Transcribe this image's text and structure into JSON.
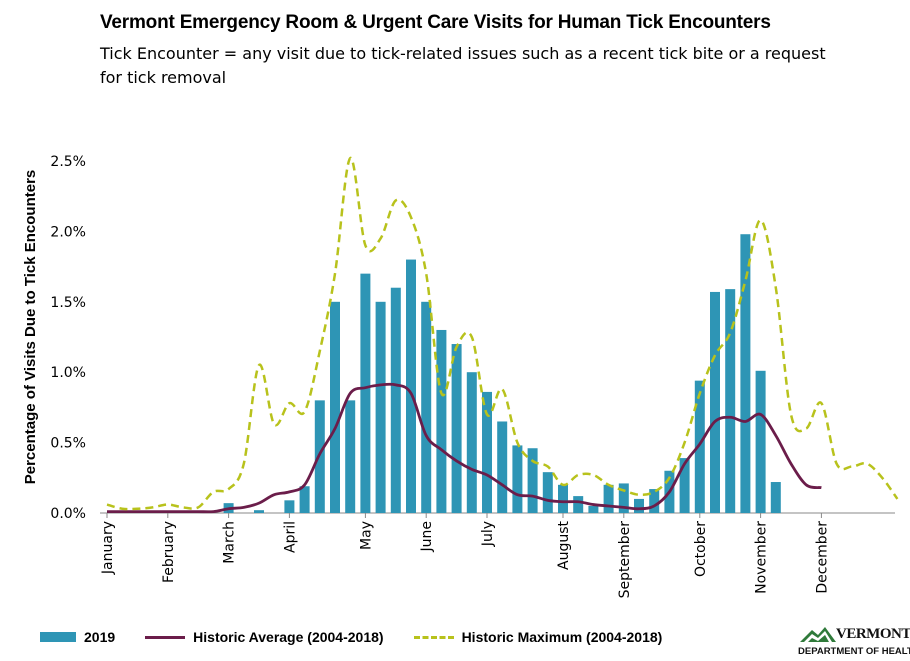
{
  "header": {
    "title": "Vermont Emergency Room & Urgent Care Visits for Human Tick Encounters",
    "subtitle": "Tick Encounter = any visit due to tick-related issues such as a recent tick bite or a request for tick removal"
  },
  "logo": {
    "name": "VERMONT",
    "dept": "DEPARTMENT OF HEALTH"
  },
  "colors": {
    "bar": "#2e95b5",
    "average": "#6b1d4a",
    "maximum": "#b8c21c"
  },
  "chart_data": {
    "type": "bar",
    "title": "Vermont Emergency Room & Urgent Care Visits for Human Tick Encounters",
    "ylabel": "Percentage of Visits Due to Tick Encounters",
    "xlabel": "",
    "ylim": [
      0,
      2.5
    ],
    "yticks": [
      "0.0%",
      "0.5%",
      "1.0%",
      "1.5%",
      "2.0%",
      "2.5%"
    ],
    "xlim": [
      1,
      53
    ],
    "months": [
      {
        "label": "January",
        "week": 1
      },
      {
        "label": "February",
        "week": 5
      },
      {
        "label": "March",
        "week": 9
      },
      {
        "label": "April",
        "week": 13
      },
      {
        "label": "May",
        "week": 18
      },
      {
        "label": "June",
        "week": 22
      },
      {
        "label": "July",
        "week": 26
      },
      {
        "label": "August",
        "week": 31
      },
      {
        "label": "September",
        "week": 35
      },
      {
        "label": "October",
        "week": 40
      },
      {
        "label": "November",
        "week": 44
      },
      {
        "label": "December",
        "week": 48
      }
    ],
    "series": [
      {
        "name": "2019",
        "kind": "bar",
        "weeks": [
          9,
          11,
          13,
          14,
          15,
          16,
          17,
          18,
          19,
          20,
          21,
          22,
          23,
          24,
          25,
          26,
          27,
          28,
          29,
          30,
          31,
          32,
          33,
          34,
          35,
          36,
          37,
          38,
          39,
          40,
          41,
          42,
          43,
          44,
          45
        ],
        "values": [
          0.07,
          0.02,
          0.09,
          0.19,
          0.8,
          1.5,
          0.8,
          1.7,
          1.5,
          1.6,
          1.8,
          1.5,
          1.3,
          1.2,
          1.0,
          0.86,
          0.65,
          0.48,
          0.46,
          0.29,
          0.2,
          0.12,
          0.05,
          0.2,
          0.21,
          0.1,
          0.17,
          0.3,
          0.39,
          0.94,
          1.57,
          1.59,
          1.98,
          1.01,
          0.22
        ]
      },
      {
        "name": "Historic Average (2004-2018)",
        "kind": "line",
        "weeks": [
          1,
          2,
          3,
          4,
          5,
          6,
          7,
          8,
          9,
          10,
          11,
          12,
          13,
          14,
          15,
          16,
          17,
          18,
          19,
          20,
          21,
          22,
          23,
          24,
          25,
          26,
          27,
          28,
          29,
          30,
          31,
          32,
          33,
          34,
          35,
          36,
          37,
          38,
          39,
          40,
          41,
          42,
          43,
          44,
          45,
          46,
          47,
          48
        ],
        "values": [
          0.01,
          0.01,
          0.01,
          0.01,
          0.01,
          0.01,
          0.01,
          0.01,
          0.03,
          0.04,
          0.07,
          0.13,
          0.15,
          0.2,
          0.42,
          0.6,
          0.85,
          0.89,
          0.91,
          0.91,
          0.85,
          0.55,
          0.45,
          0.37,
          0.31,
          0.27,
          0.2,
          0.13,
          0.12,
          0.09,
          0.08,
          0.08,
          0.06,
          0.05,
          0.04,
          0.03,
          0.05,
          0.15,
          0.35,
          0.49,
          0.65,
          0.68,
          0.65,
          0.7,
          0.55,
          0.35,
          0.2,
          0.18
        ]
      },
      {
        "name": "Historic Maximum (2004-2018)",
        "kind": "line",
        "dashed": true,
        "weeks": [
          1,
          2,
          3,
          4,
          5,
          6,
          7,
          8,
          9,
          10,
          11,
          12,
          13,
          14,
          15,
          16,
          17,
          18,
          19,
          20,
          21,
          22,
          23,
          24,
          25,
          26,
          27,
          28,
          29,
          30,
          31,
          32,
          33,
          34,
          35,
          36,
          37,
          38,
          39,
          40,
          41,
          42,
          43,
          44,
          45,
          46,
          47,
          48,
          49,
          50,
          51,
          52,
          53
        ],
        "values": [
          0.06,
          0.03,
          0.03,
          0.04,
          0.06,
          0.04,
          0.04,
          0.15,
          0.17,
          0.35,
          1.05,
          0.63,
          0.78,
          0.72,
          1.15,
          1.7,
          2.52,
          1.9,
          1.95,
          2.22,
          2.1,
          1.7,
          0.85,
          1.18,
          1.25,
          0.7,
          0.88,
          0.5,
          0.37,
          0.33,
          0.2,
          0.27,
          0.27,
          0.2,
          0.16,
          0.13,
          0.15,
          0.25,
          0.5,
          0.85,
          1.12,
          1.28,
          1.65,
          2.08,
          1.6,
          0.7,
          0.6,
          0.78,
          0.35,
          0.33,
          0.35,
          0.25,
          0.1
        ]
      }
    ],
    "legend": {
      "bar_label": "2019",
      "avg_label": "Historic Average (2004-2018)",
      "max_label": "Historic Maximum (2004-2018)",
      "position": "bottom"
    }
  }
}
